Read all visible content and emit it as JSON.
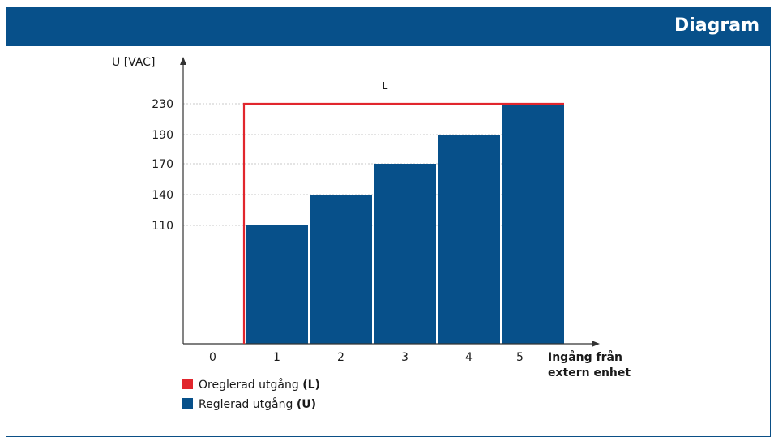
{
  "header": {
    "title": "Diagram"
  },
  "colors": {
    "header": "#07508a",
    "bar": "#07508a",
    "line": "#e1262d",
    "grid": "#c8c8c8"
  },
  "chart_data": {
    "type": "bar",
    "ylabel": "U [VAC]",
    "xlabel_line1": "Ingång från",
    "xlabel_line2": "extern enhet",
    "categories": [
      "0",
      "1",
      "2",
      "3",
      "4",
      "5"
    ],
    "y_ticks": [
      "110",
      "140",
      "170",
      "190",
      "230"
    ],
    "series": [
      {
        "name": "Reglerad utgång",
        "key": "(U)",
        "type": "bar",
        "values": [
          0,
          110,
          140,
          170,
          190,
          230
        ]
      },
      {
        "name": "Oreglerad utgång",
        "key": "(L)",
        "type": "step-line",
        "values": [
          0,
          230,
          230,
          230,
          230,
          230
        ]
      }
    ],
    "annotations": [
      {
        "text": "L"
      }
    ]
  },
  "legend": [
    {
      "label": "Oreglerad utgång",
      "key": "(L)",
      "color": "#e1262d"
    },
    {
      "label": "Reglerad utgång",
      "key": "(U)",
      "color": "#07508a"
    }
  ]
}
